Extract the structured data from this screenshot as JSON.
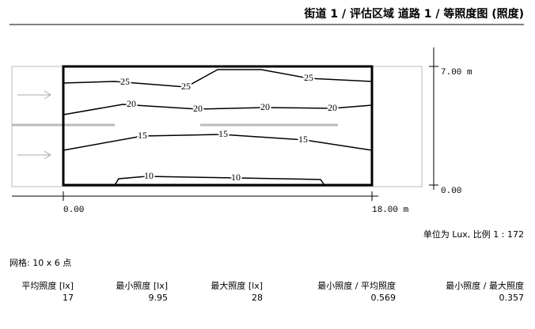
{
  "header": {
    "title": "街道 1 / 评估区域 道路 1 / 等照度图 (照度)"
  },
  "plot": {
    "y_top_label": "7.00 m",
    "y_bottom_label": "0.00",
    "x_left_label": "0.00",
    "x_right_label": "18.00 m",
    "contour_labels": [
      25,
      25,
      25,
      20,
      20,
      20,
      20,
      15,
      15,
      15,
      10,
      10
    ]
  },
  "scale": "单位为 Lux, 比例 1 : 172",
  "grid": "网格: 10 x 6 点",
  "table": {
    "headers": [
      "平均照度 [lx]",
      "最小照度 [lx]",
      "最大照度 [lx]",
      "最小照度 / 平均照度",
      "最小照度 / 最大照度"
    ],
    "values": [
      17,
      9.95,
      28,
      0.569,
      0.357
    ]
  }
}
